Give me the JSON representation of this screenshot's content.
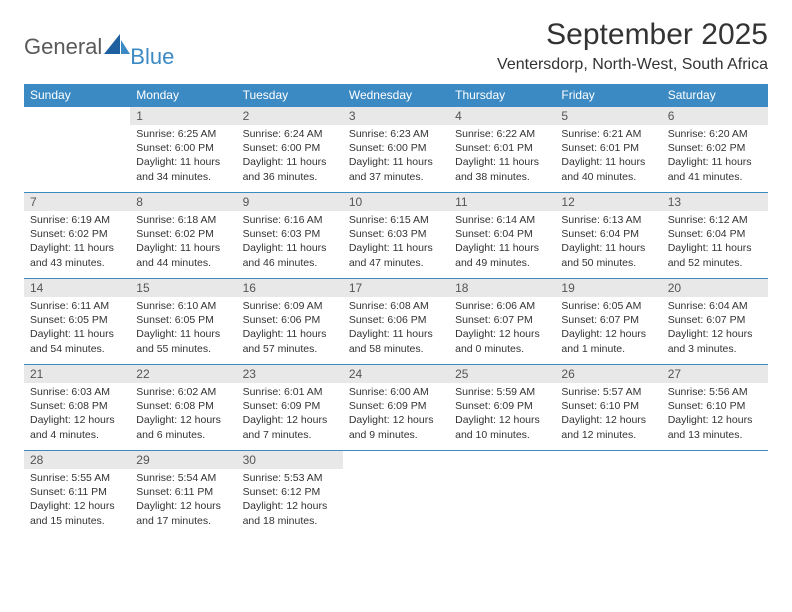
{
  "logo": {
    "text1": "General",
    "text2": "Blue"
  },
  "title": "September 2025",
  "location": "Ventersdorp, North-West, South Africa",
  "colors": {
    "header_bg": "#3b8ac4",
    "header_fg": "#ffffff",
    "daynum_bg": "#e8e8e8",
    "daynum_fg": "#555555",
    "text": "#333333",
    "row_border": "#3b8ac4"
  },
  "dow": [
    "Sunday",
    "Monday",
    "Tuesday",
    "Wednesday",
    "Thursday",
    "Friday",
    "Saturday"
  ],
  "weeks": [
    [
      null,
      {
        "n": "1",
        "sr": "6:25 AM",
        "ss": "6:00 PM",
        "dl": "11 hours and 34 minutes."
      },
      {
        "n": "2",
        "sr": "6:24 AM",
        "ss": "6:00 PM",
        "dl": "11 hours and 36 minutes."
      },
      {
        "n": "3",
        "sr": "6:23 AM",
        "ss": "6:00 PM",
        "dl": "11 hours and 37 minutes."
      },
      {
        "n": "4",
        "sr": "6:22 AM",
        "ss": "6:01 PM",
        "dl": "11 hours and 38 minutes."
      },
      {
        "n": "5",
        "sr": "6:21 AM",
        "ss": "6:01 PM",
        "dl": "11 hours and 40 minutes."
      },
      {
        "n": "6",
        "sr": "6:20 AM",
        "ss": "6:02 PM",
        "dl": "11 hours and 41 minutes."
      }
    ],
    [
      {
        "n": "7",
        "sr": "6:19 AM",
        "ss": "6:02 PM",
        "dl": "11 hours and 43 minutes."
      },
      {
        "n": "8",
        "sr": "6:18 AM",
        "ss": "6:02 PM",
        "dl": "11 hours and 44 minutes."
      },
      {
        "n": "9",
        "sr": "6:16 AM",
        "ss": "6:03 PM",
        "dl": "11 hours and 46 minutes."
      },
      {
        "n": "10",
        "sr": "6:15 AM",
        "ss": "6:03 PM",
        "dl": "11 hours and 47 minutes."
      },
      {
        "n": "11",
        "sr": "6:14 AM",
        "ss": "6:04 PM",
        "dl": "11 hours and 49 minutes."
      },
      {
        "n": "12",
        "sr": "6:13 AM",
        "ss": "6:04 PM",
        "dl": "11 hours and 50 minutes."
      },
      {
        "n": "13",
        "sr": "6:12 AM",
        "ss": "6:04 PM",
        "dl": "11 hours and 52 minutes."
      }
    ],
    [
      {
        "n": "14",
        "sr": "6:11 AM",
        "ss": "6:05 PM",
        "dl": "11 hours and 54 minutes."
      },
      {
        "n": "15",
        "sr": "6:10 AM",
        "ss": "6:05 PM",
        "dl": "11 hours and 55 minutes."
      },
      {
        "n": "16",
        "sr": "6:09 AM",
        "ss": "6:06 PM",
        "dl": "11 hours and 57 minutes."
      },
      {
        "n": "17",
        "sr": "6:08 AM",
        "ss": "6:06 PM",
        "dl": "11 hours and 58 minutes."
      },
      {
        "n": "18",
        "sr": "6:06 AM",
        "ss": "6:07 PM",
        "dl": "12 hours and 0 minutes."
      },
      {
        "n": "19",
        "sr": "6:05 AM",
        "ss": "6:07 PM",
        "dl": "12 hours and 1 minute."
      },
      {
        "n": "20",
        "sr": "6:04 AM",
        "ss": "6:07 PM",
        "dl": "12 hours and 3 minutes."
      }
    ],
    [
      {
        "n": "21",
        "sr": "6:03 AM",
        "ss": "6:08 PM",
        "dl": "12 hours and 4 minutes."
      },
      {
        "n": "22",
        "sr": "6:02 AM",
        "ss": "6:08 PM",
        "dl": "12 hours and 6 minutes."
      },
      {
        "n": "23",
        "sr": "6:01 AM",
        "ss": "6:09 PM",
        "dl": "12 hours and 7 minutes."
      },
      {
        "n": "24",
        "sr": "6:00 AM",
        "ss": "6:09 PM",
        "dl": "12 hours and 9 minutes."
      },
      {
        "n": "25",
        "sr": "5:59 AM",
        "ss": "6:09 PM",
        "dl": "12 hours and 10 minutes."
      },
      {
        "n": "26",
        "sr": "5:57 AM",
        "ss": "6:10 PM",
        "dl": "12 hours and 12 minutes."
      },
      {
        "n": "27",
        "sr": "5:56 AM",
        "ss": "6:10 PM",
        "dl": "12 hours and 13 minutes."
      }
    ],
    [
      {
        "n": "28",
        "sr": "5:55 AM",
        "ss": "6:11 PM",
        "dl": "12 hours and 15 minutes."
      },
      {
        "n": "29",
        "sr": "5:54 AM",
        "ss": "6:11 PM",
        "dl": "12 hours and 17 minutes."
      },
      {
        "n": "30",
        "sr": "5:53 AM",
        "ss": "6:12 PM",
        "dl": "12 hours and 18 minutes."
      },
      null,
      null,
      null,
      null
    ]
  ],
  "labels": {
    "sunrise": "Sunrise:",
    "sunset": "Sunset:",
    "daylight": "Daylight:"
  }
}
